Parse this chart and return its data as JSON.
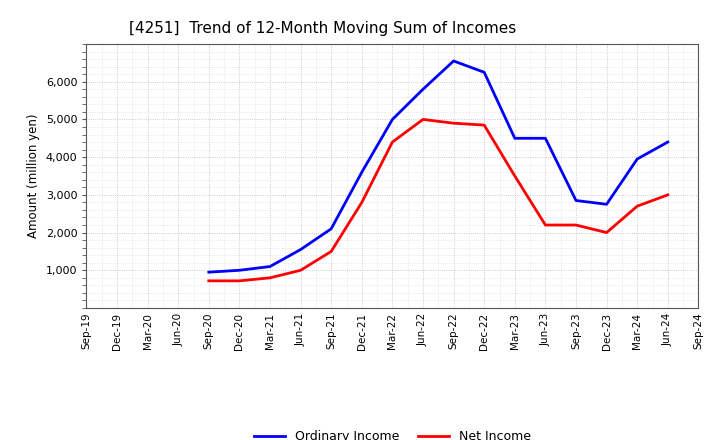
{
  "title": "[4251]  Trend of 12-Month Moving Sum of Incomes",
  "ylabel": "Amount (million yen)",
  "x_labels": [
    "Sep-19",
    "Dec-19",
    "Mar-20",
    "Jun-20",
    "Sep-20",
    "Dec-20",
    "Mar-21",
    "Jun-21",
    "Sep-21",
    "Dec-21",
    "Mar-22",
    "Jun-22",
    "Sep-22",
    "Dec-22",
    "Mar-23",
    "Jun-23",
    "Sep-23",
    "Dec-23",
    "Mar-24",
    "Jun-24",
    "Sep-24"
  ],
  "ordinary_income": [
    null,
    null,
    null,
    null,
    950,
    1000,
    1100,
    1550,
    2100,
    3600,
    5000,
    5800,
    6550,
    6250,
    4500,
    4500,
    2850,
    2750,
    3950,
    4400,
    null
  ],
  "net_income": [
    null,
    null,
    null,
    null,
    720,
    720,
    800,
    1000,
    1500,
    2800,
    4400,
    5000,
    4900,
    4850,
    3500,
    2200,
    2200,
    2000,
    2700,
    3000,
    null
  ],
  "ordinary_color": "#0000ff",
  "net_color": "#ff0000",
  "line_width": 2.0,
  "ylim": [
    0,
    7000
  ],
  "yticks": [
    1000,
    2000,
    3000,
    4000,
    5000,
    6000
  ],
  "background_color": "#ffffff",
  "grid_color": "#aaaaaa",
  "title_fontsize": 11,
  "legend_labels": [
    "Ordinary Income",
    "Net Income"
  ]
}
